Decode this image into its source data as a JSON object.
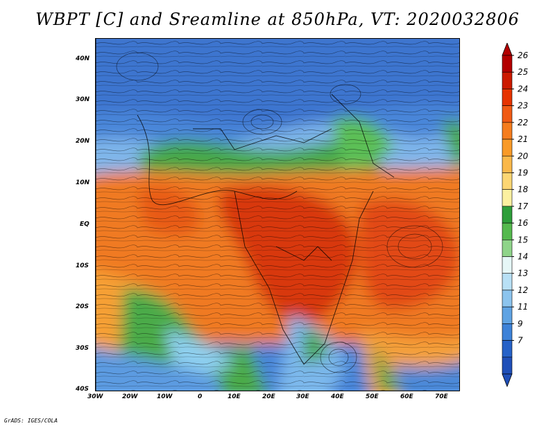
{
  "title": "WBPT [C] and Sreamline at 850hPa, VT: 2020032806",
  "credit": "GrADS: IGES/COLA",
  "map": {
    "lat_labels": [
      "40N",
      "30N",
      "20N",
      "10N",
      "EQ",
      "10S",
      "20S",
      "30S",
      "40S"
    ],
    "lon_labels": [
      "30W",
      "20W",
      "10W",
      "0",
      "10E",
      "20E",
      "30E",
      "40E",
      "50E",
      "60E",
      "70E"
    ]
  },
  "colorbar": {
    "labels": [
      "26",
      "25",
      "24",
      "23",
      "22",
      "21",
      "20",
      "19",
      "18",
      "17",
      "16",
      "15",
      "14",
      "13",
      "12",
      "11",
      "9",
      "7"
    ],
    "colors": [
      "#b30000",
      "#cc1a00",
      "#e63300",
      "#f05a14",
      "#f57d1e",
      "#f89a28",
      "#fab84a",
      "#fcd673",
      "#fbf0a0",
      "#2e9e3a",
      "#55b94e",
      "#8fd48a",
      "#e6f7f7",
      "#b8e0f5",
      "#8cc4ee",
      "#5fa3e3",
      "#3d82d8",
      "#2662c8",
      "#1f4fb8"
    ]
  },
  "colors": {
    "frame": "#000000",
    "background": "#ffffff"
  }
}
